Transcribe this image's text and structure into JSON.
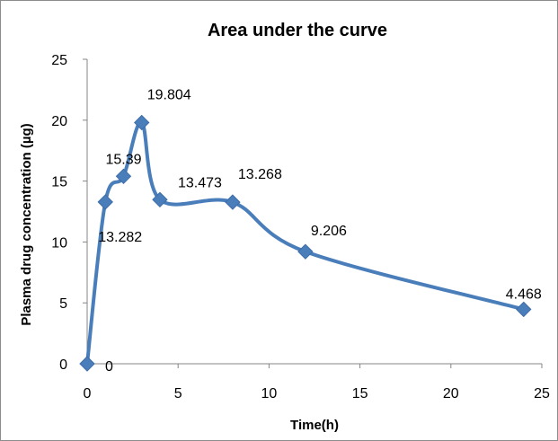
{
  "chart_data": {
    "type": "line",
    "title": "Area under the curve",
    "xlabel": "Time(h)",
    "ylabel": "Plasma drug concentration (µg)",
    "xlim": [
      0,
      25
    ],
    "ylim": [
      0,
      25
    ],
    "xticks": [
      "0",
      "5",
      "10",
      "15",
      "20",
      "25"
    ],
    "yticks": [
      "0",
      "5",
      "10",
      "15",
      "20",
      "25"
    ],
    "grid": false,
    "smooth": true,
    "color": "#4a7ebb",
    "series": [
      {
        "x": [
          0,
          1,
          2,
          3,
          4,
          8,
          12,
          24
        ],
        "values": [
          0,
          13.282,
          15.39,
          19.804,
          13.473,
          13.268,
          9.206,
          4.468
        ],
        "labels": [
          "0",
          "13.282",
          "15.39",
          "19.804",
          "13.473",
          "13.268",
          "9.206",
          "4.468"
        ]
      }
    ]
  }
}
